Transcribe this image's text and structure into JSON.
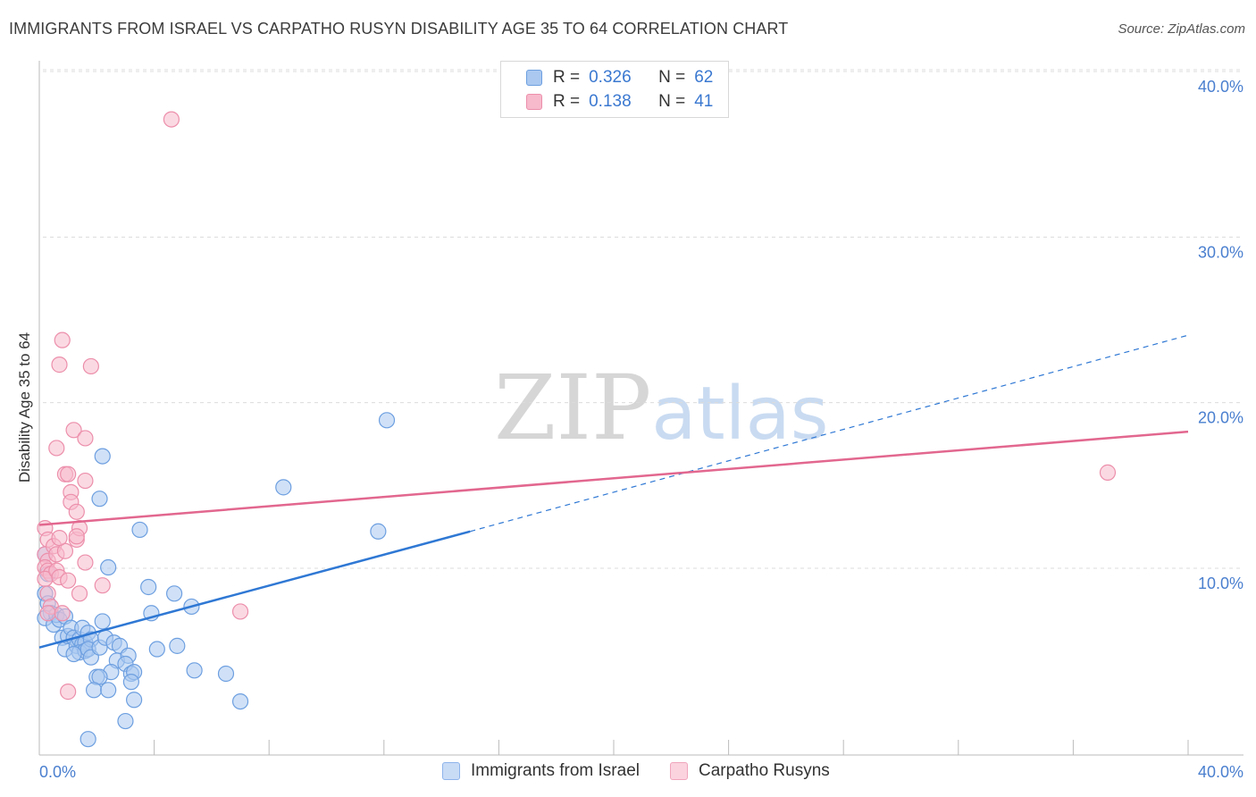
{
  "title": "IMMIGRANTS FROM ISRAEL VS CARPATHO RUSYN DISABILITY AGE 35 TO 64 CORRELATION CHART",
  "source": "Source: ZipAtlas.com",
  "watermark": {
    "zip": "ZIP",
    "atlas": "atlas"
  },
  "legend": {
    "rows": [
      {
        "r_label": "R =",
        "r_value": "0.326",
        "n_label": "N =",
        "n_value": "62"
      },
      {
        "r_label": "R =",
        "r_value": "0.138",
        "n_label": "N =",
        "n_value": "41"
      }
    ]
  },
  "colors": {
    "blue_fill": "#aac8f0",
    "blue_stroke": "#6d9fe0",
    "blue_line": "#2f78d4",
    "pink_fill": "#f7b9cc",
    "pink_stroke": "#ec8fab",
    "pink_line": "#e2678f",
    "grid": "#dcdcdc",
    "tick_text": "#4a7fcf"
  },
  "chart_data": {
    "type": "scatter",
    "title": "IMMIGRANTS FROM ISRAEL VS CARPATHO RUSYN DISABILITY AGE 35 TO 64 CORRELATION CHART",
    "xlabel": "",
    "ylabel": "Disability Age 35 to 64",
    "xlim": [
      0,
      40
    ],
    "ylim": [
      0,
      40
    ],
    "x_tick_labels": [
      "0.0%",
      "40.0%"
    ],
    "y_tick_values": [
      10,
      20,
      30,
      40
    ],
    "y_tick_labels": [
      "10.0%",
      "20.0%",
      "30.0%",
      "40.0%"
    ],
    "grid": true,
    "legend_position": "top-center",
    "series": [
      {
        "name": "Immigrants from Israel",
        "color": "#aac8f0",
        "r": 0.326,
        "n": 62,
        "trend": {
          "x0": 0,
          "y0": 6.3,
          "x1": 15,
          "y1": 13.4,
          "dashed_to_x": 40,
          "dashed_to_y": 25.4
        },
        "points": [
          [
            0.2,
            12.0
          ],
          [
            0.3,
            10.8
          ],
          [
            0.2,
            9.6
          ],
          [
            0.3,
            9.0
          ],
          [
            0.4,
            8.4
          ],
          [
            0.2,
            8.1
          ],
          [
            0.5,
            7.7
          ],
          [
            0.6,
            8.3
          ],
          [
            0.7,
            8.0
          ],
          [
            0.9,
            8.2
          ],
          [
            0.8,
            6.9
          ],
          [
            0.9,
            6.2
          ],
          [
            1.0,
            7.0
          ],
          [
            1.1,
            7.5
          ],
          [
            1.2,
            6.9
          ],
          [
            1.3,
            6.4
          ],
          [
            1.4,
            6.8
          ],
          [
            1.5,
            6.5
          ],
          [
            1.6,
            6.6
          ],
          [
            1.4,
            6.0
          ],
          [
            1.6,
            6.1
          ],
          [
            1.5,
            7.5
          ],
          [
            1.7,
            7.2
          ],
          [
            1.8,
            6.8
          ],
          [
            1.7,
            6.2
          ],
          [
            1.8,
            5.7
          ],
          [
            2.1,
            6.3
          ],
          [
            2.2,
            7.9
          ],
          [
            2.3,
            6.9
          ],
          [
            2.6,
            6.6
          ],
          [
            2.8,
            6.4
          ],
          [
            2.7,
            5.5
          ],
          [
            3.1,
            5.8
          ],
          [
            3.0,
            5.3
          ],
          [
            2.5,
            4.8
          ],
          [
            2.0,
            4.5
          ],
          [
            2.1,
            4.5
          ],
          [
            3.2,
            4.7
          ],
          [
            3.3,
            4.8
          ],
          [
            1.9,
            3.7
          ],
          [
            2.4,
            3.7
          ],
          [
            3.3,
            3.1
          ],
          [
            3.0,
            1.8
          ],
          [
            1.7,
            0.7
          ],
          [
            2.1,
            15.4
          ],
          [
            2.2,
            18.0
          ],
          [
            2.4,
            11.2
          ],
          [
            3.5,
            13.5
          ],
          [
            3.8,
            10.0
          ],
          [
            3.9,
            8.4
          ],
          [
            4.1,
            6.2
          ],
          [
            4.7,
            9.6
          ],
          [
            4.8,
            6.4
          ],
          [
            5.3,
            8.8
          ],
          [
            5.4,
            4.9
          ],
          [
            6.5,
            4.7
          ],
          [
            7.0,
            3.0
          ],
          [
            8.5,
            16.1
          ],
          [
            11.8,
            13.4
          ],
          [
            12.1,
            20.2
          ],
          [
            3.2,
            4.2
          ],
          [
            1.2,
            5.9
          ]
        ]
      },
      {
        "name": "Carpatho Rusyns",
        "color": "#f7b9cc",
        "r": 0.138,
        "n": 41,
        "trend": {
          "x0": 0,
          "y0": 13.8,
          "x1": 40,
          "y1": 19.5
        },
        "points": [
          [
            0.2,
            13.6
          ],
          [
            0.3,
            12.9
          ],
          [
            0.2,
            12.0
          ],
          [
            0.3,
            11.6
          ],
          [
            0.2,
            11.2
          ],
          [
            0.3,
            11.0
          ],
          [
            0.4,
            10.8
          ],
          [
            0.2,
            10.5
          ],
          [
            0.3,
            9.6
          ],
          [
            0.4,
            8.8
          ],
          [
            0.3,
            8.4
          ],
          [
            0.5,
            12.5
          ],
          [
            0.6,
            12.0
          ],
          [
            0.6,
            11.0
          ],
          [
            0.7,
            10.6
          ],
          [
            0.8,
            8.4
          ],
          [
            0.9,
            12.2
          ],
          [
            0.7,
            13.0
          ],
          [
            0.9,
            16.9
          ],
          [
            1.0,
            16.9
          ],
          [
            1.1,
            15.8
          ],
          [
            1.1,
            15.2
          ],
          [
            1.0,
            10.4
          ],
          [
            1.2,
            19.6
          ],
          [
            1.3,
            14.6
          ],
          [
            1.3,
            12.9
          ],
          [
            1.4,
            13.6
          ],
          [
            1.4,
            9.6
          ],
          [
            1.6,
            16.5
          ],
          [
            1.6,
            11.5
          ],
          [
            1.6,
            19.1
          ],
          [
            0.6,
            18.5
          ],
          [
            0.7,
            23.6
          ],
          [
            0.8,
            25.1
          ],
          [
            1.8,
            23.5
          ],
          [
            2.2,
            10.1
          ],
          [
            4.6,
            38.6
          ],
          [
            7.0,
            8.5
          ],
          [
            37.2,
            17.0
          ],
          [
            1.0,
            3.6
          ],
          [
            1.3,
            13.1
          ]
        ]
      }
    ]
  },
  "bottom_legend": [
    "Immigrants from Israel",
    "Carpatho Rusyns"
  ]
}
